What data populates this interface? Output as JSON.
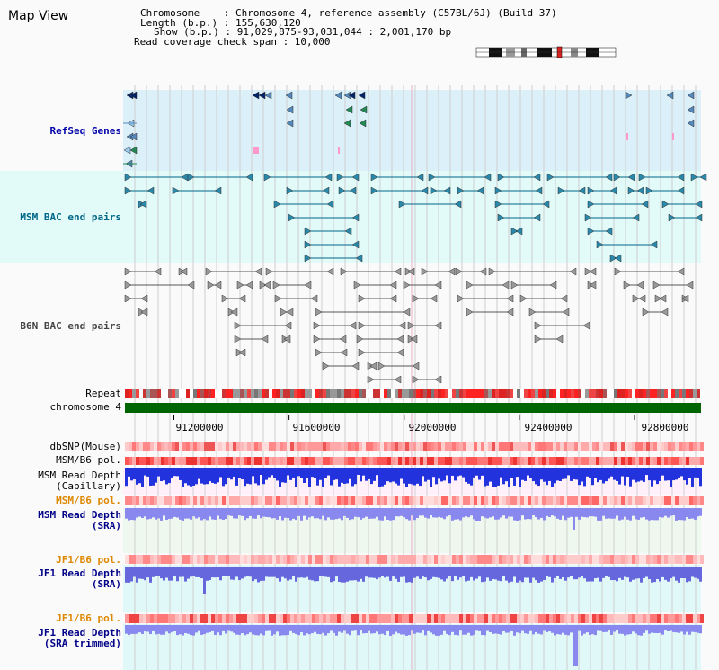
{
  "title": "Map View",
  "header": {
    "rows": [
      "Chromosome    : Chromosome 4, reference assembly (C57BL/6J) (Build 37)",
      "Length (b.p.) : 155,630,120",
      "Show (b.p.) : 91,029,875-93,031,044 : 2,001,170 bp",
      "Read coverage check span : 10,000"
    ]
  },
  "axis": {
    "start": 91029875,
    "end": 93031044,
    "ticks": [
      "91200000",
      "91600000",
      "92000000",
      "92400000",
      "92800000"
    ],
    "tick_values": [
      91200000,
      91600000,
      92000000,
      92400000,
      92800000
    ]
  },
  "tracks": {
    "refseq": {
      "label": "RefSeq Genes",
      "color": "#0000aa"
    },
    "msm_bac": {
      "label": "MSM BAC end pairs",
      "color": "#006688"
    },
    "b6n_bac": {
      "label": "B6N BAC end pairs",
      "color": "#444444"
    },
    "repeat": {
      "label": "Repeat"
    },
    "chromosome": {
      "label": "chromosome 4"
    },
    "dbsnp": {
      "label": "dbSNP(Mouse)"
    },
    "msm_b6_pol_1": {
      "label": "MSM/B6 pol."
    },
    "msm_depth_cap": {
      "label1": "MSM Read Depth",
      "label2": "(Capillary)"
    },
    "msm_b6_pol_2": {
      "label": "MSM/B6 pol."
    },
    "msm_depth_sra": {
      "label1": "MSM Read Depth",
      "label2": "(SRA)"
    },
    "jf1_b6_pol_1": {
      "label": "JF1/B6 pol."
    },
    "jf1_depth_sra": {
      "label1": "JF1 Read Depth",
      "label2": "(SRA)"
    },
    "jf1_b6_pol_2": {
      "label": "JF1/B6 pol."
    },
    "jf1_depth_trim": {
      "label1": "JF1 Read Depth",
      "label2": "(SRA trimmed)"
    }
  },
  "colors": {
    "refseq_bg": "#dcf0fa",
    "msm_bg": "#e2faf8",
    "grid": "#c8c8c8",
    "chromosome": "#006400",
    "depth_cap_bg": "#fff0fa",
    "depth_sra_bg": "#eef8ee",
    "depth_jf1_bg": "#e0f8f8",
    "pol_label": "#dd8800",
    "depth_label": "#000088"
  }
}
